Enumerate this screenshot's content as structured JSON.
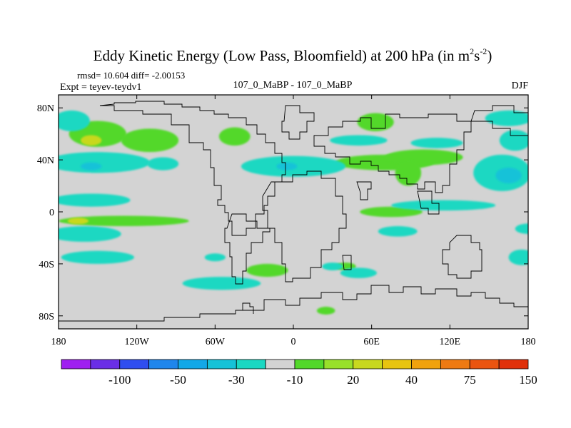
{
  "chart_data": {
    "type": "heatmap",
    "title": "Eddy Kinetic Energy (Low Pass, Bloomfield) at 200 hPa (in m",
    "title_sup1": "2",
    "title_mid": "s",
    "title_sup2": "-2",
    "title_end": ")",
    "stats": "rmsd= 10.604 diff= -2.00153",
    "expt": "Expt = teyev-teydv1",
    "run_label": "107_0_MaBP - 107_0_MaBP",
    "season": "DJF",
    "xlim": [
      -180,
      180
    ],
    "ylim": [
      -90,
      90
    ],
    "x_ticks": [
      {
        "value": -180,
        "label": "180"
      },
      {
        "value": -120,
        "label": "120W"
      },
      {
        "value": -60,
        "label": "60W"
      },
      {
        "value": 0,
        "label": "0"
      },
      {
        "value": 60,
        "label": "60E"
      },
      {
        "value": 120,
        "label": "120E"
      },
      {
        "value": 180,
        "label": "180"
      }
    ],
    "y_ticks": [
      {
        "value": 80,
        "label": "80N"
      },
      {
        "value": 40,
        "label": "40N"
      },
      {
        "value": 0,
        "label": "0"
      },
      {
        "value": -40,
        "label": "40S"
      },
      {
        "value": -80,
        "label": "80S"
      }
    ],
    "colorbar": {
      "colors": [
        "#9f1ff0",
        "#6a2ee6",
        "#2f4ef0",
        "#1f86ec",
        "#12a8e8",
        "#16c2d8",
        "#1ad8c2",
        "#d3d3d3",
        "#52d82a",
        "#98e02a",
        "#c8d81e",
        "#e8c410",
        "#f0a20e",
        "#ee7a12",
        "#ea5410",
        "#e0300a"
      ],
      "labels": [
        "-100",
        "-50",
        "-30",
        "-10",
        "20",
        "40",
        "75",
        "150"
      ]
    },
    "regions": [
      {
        "lon": -150,
        "lat": 60,
        "rx": 22,
        "ry": 10,
        "level": "20"
      },
      {
        "lon": -155,
        "lat": 55,
        "rx": 8,
        "ry": 4,
        "level": "40"
      },
      {
        "lon": -110,
        "lat": 55,
        "rx": 22,
        "ry": 9,
        "level": "20"
      },
      {
        "lon": -45,
        "lat": 58,
        "rx": 12,
        "ry": 7,
        "level": "20"
      },
      {
        "lon": 63,
        "lat": 69,
        "rx": 14,
        "ry": 7,
        "level": "20"
      },
      {
        "lon": 70,
        "lat": 38,
        "rx": 38,
        "ry": 6,
        "level": "20"
      },
      {
        "lon": 100,
        "lat": 42,
        "rx": 30,
        "ry": 6,
        "level": "20"
      },
      {
        "lon": 88,
        "lat": 30,
        "rx": 10,
        "ry": 10,
        "level": "20"
      },
      {
        "lon": 75,
        "lat": 0,
        "rx": 24,
        "ry": 4,
        "level": "20"
      },
      {
        "lon": -130,
        "lat": -7,
        "rx": 50,
        "ry": 4,
        "level": "20"
      },
      {
        "lon": -165,
        "lat": -7,
        "rx": 8,
        "ry": 2.5,
        "level": "40"
      },
      {
        "lon": -20,
        "lat": -45,
        "rx": 16,
        "ry": 5,
        "level": "20"
      },
      {
        "lon": 40,
        "lat": -42,
        "rx": 8,
        "ry": 3,
        "level": "20"
      },
      {
        "lon": 25,
        "lat": -76,
        "rx": 7,
        "ry": 3,
        "level": "20"
      },
      {
        "lon": 165,
        "lat": 72,
        "rx": 18,
        "ry": 6,
        "level": "-10"
      },
      {
        "lon": 170,
        "lat": 55,
        "rx": 12,
        "ry": 8,
        "level": "-10"
      },
      {
        "lon": 160,
        "lat": 30,
        "rx": 22,
        "ry": 14,
        "level": "-10"
      },
      {
        "lon": 165,
        "lat": 28,
        "rx": 10,
        "ry": 6,
        "level": "-30"
      },
      {
        "lon": -170,
        "lat": 70,
        "rx": 14,
        "ry": 8,
        "level": "-10"
      },
      {
        "lon": -150,
        "lat": 38,
        "rx": 40,
        "ry": 8,
        "level": "-10"
      },
      {
        "lon": -155,
        "lat": 35,
        "rx": 8,
        "ry": 3,
        "level": "-30"
      },
      {
        "lon": -100,
        "lat": 37,
        "rx": 12,
        "ry": 5,
        "level": "-10"
      },
      {
        "lon": -155,
        "lat": 9,
        "rx": 30,
        "ry": 5,
        "level": "-10"
      },
      {
        "lon": -160,
        "lat": -17,
        "rx": 28,
        "ry": 6,
        "level": "-10"
      },
      {
        "lon": -150,
        "lat": -35,
        "rx": 28,
        "ry": 5,
        "level": "-10"
      },
      {
        "lon": -60,
        "lat": -35,
        "rx": 8,
        "ry": 3,
        "level": "-10"
      },
      {
        "lon": -55,
        "lat": -55,
        "rx": 30,
        "ry": 5,
        "level": "-10"
      },
      {
        "lon": 0,
        "lat": 35,
        "rx": 40,
        "ry": 8,
        "level": "-10"
      },
      {
        "lon": -5,
        "lat": 35,
        "rx": 8,
        "ry": 3,
        "level": "-30"
      },
      {
        "lon": 50,
        "lat": 55,
        "rx": 22,
        "ry": 4,
        "level": "-10"
      },
      {
        "lon": 115,
        "lat": 5,
        "rx": 40,
        "ry": 4,
        "level": "-10"
      },
      {
        "lon": 110,
        "lat": 53,
        "rx": 20,
        "ry": 4,
        "level": "-10"
      },
      {
        "lon": 80,
        "lat": -15,
        "rx": 15,
        "ry": 4,
        "level": "-10"
      },
      {
        "lon": 180,
        "lat": -13,
        "rx": 10,
        "ry": 4,
        "level": "-10"
      },
      {
        "lon": 50,
        "lat": -47,
        "rx": 14,
        "ry": 4,
        "level": "-10"
      },
      {
        "lon": 30,
        "lat": -42,
        "rx": 8,
        "ry": 3,
        "level": "-10"
      },
      {
        "lon": 175,
        "lat": -35,
        "rx": 10,
        "ry": 6,
        "level": "-10"
      }
    ]
  }
}
